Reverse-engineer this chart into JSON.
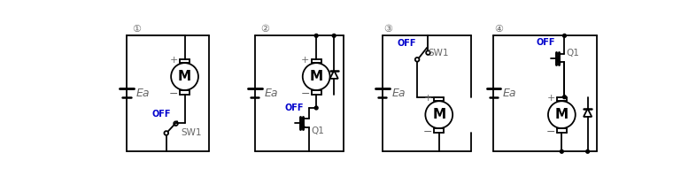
{
  "bg_color": "#ffffff",
  "line_color": "#000000",
  "off_color": "#0000cc",
  "gray_color": "#666666",
  "circuits": [
    {
      "label": "①"
    },
    {
      "label": "②"
    },
    {
      "label": "③"
    },
    {
      "label": "④"
    }
  ],
  "figsize": [
    7.6,
    2.08
  ],
  "dpi": 100,
  "lw": 1.3
}
